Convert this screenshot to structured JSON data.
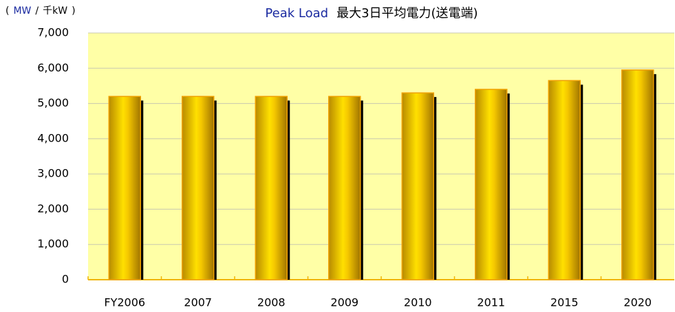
{
  "chart_data": {
    "type": "bar",
    "title": "Peak Load",
    "title_ja": "最大3日平均電力(送電端)",
    "ylabel": [
      "(",
      "MW",
      "/",
      "千kW",
      ")"
    ],
    "categories": [
      "FY2006",
      "2007",
      "2008",
      "2009",
      "2010",
      "2011",
      "2015",
      "2020"
    ],
    "values": [
      5200,
      5200,
      5200,
      5200,
      5300,
      5400,
      5650,
      5950
    ],
    "color": "#f2c200",
    "ylim": [
      0,
      7000
    ],
    "yticks": [
      0,
      {
        "value": 1000,
        "label": "1,000"
      },
      {
        "value": 2000,
        "label": "2,000"
      },
      {
        "value": 3000,
        "label": "3,000"
      },
      {
        "value": 4000,
        "label": "4,000"
      },
      {
        "value": 5000,
        "label": "5,000"
      },
      {
        "value": 6000,
        "label": "6,000"
      },
      {
        "value": 7000,
        "label": "7,000"
      }
    ],
    "grid": true
  }
}
